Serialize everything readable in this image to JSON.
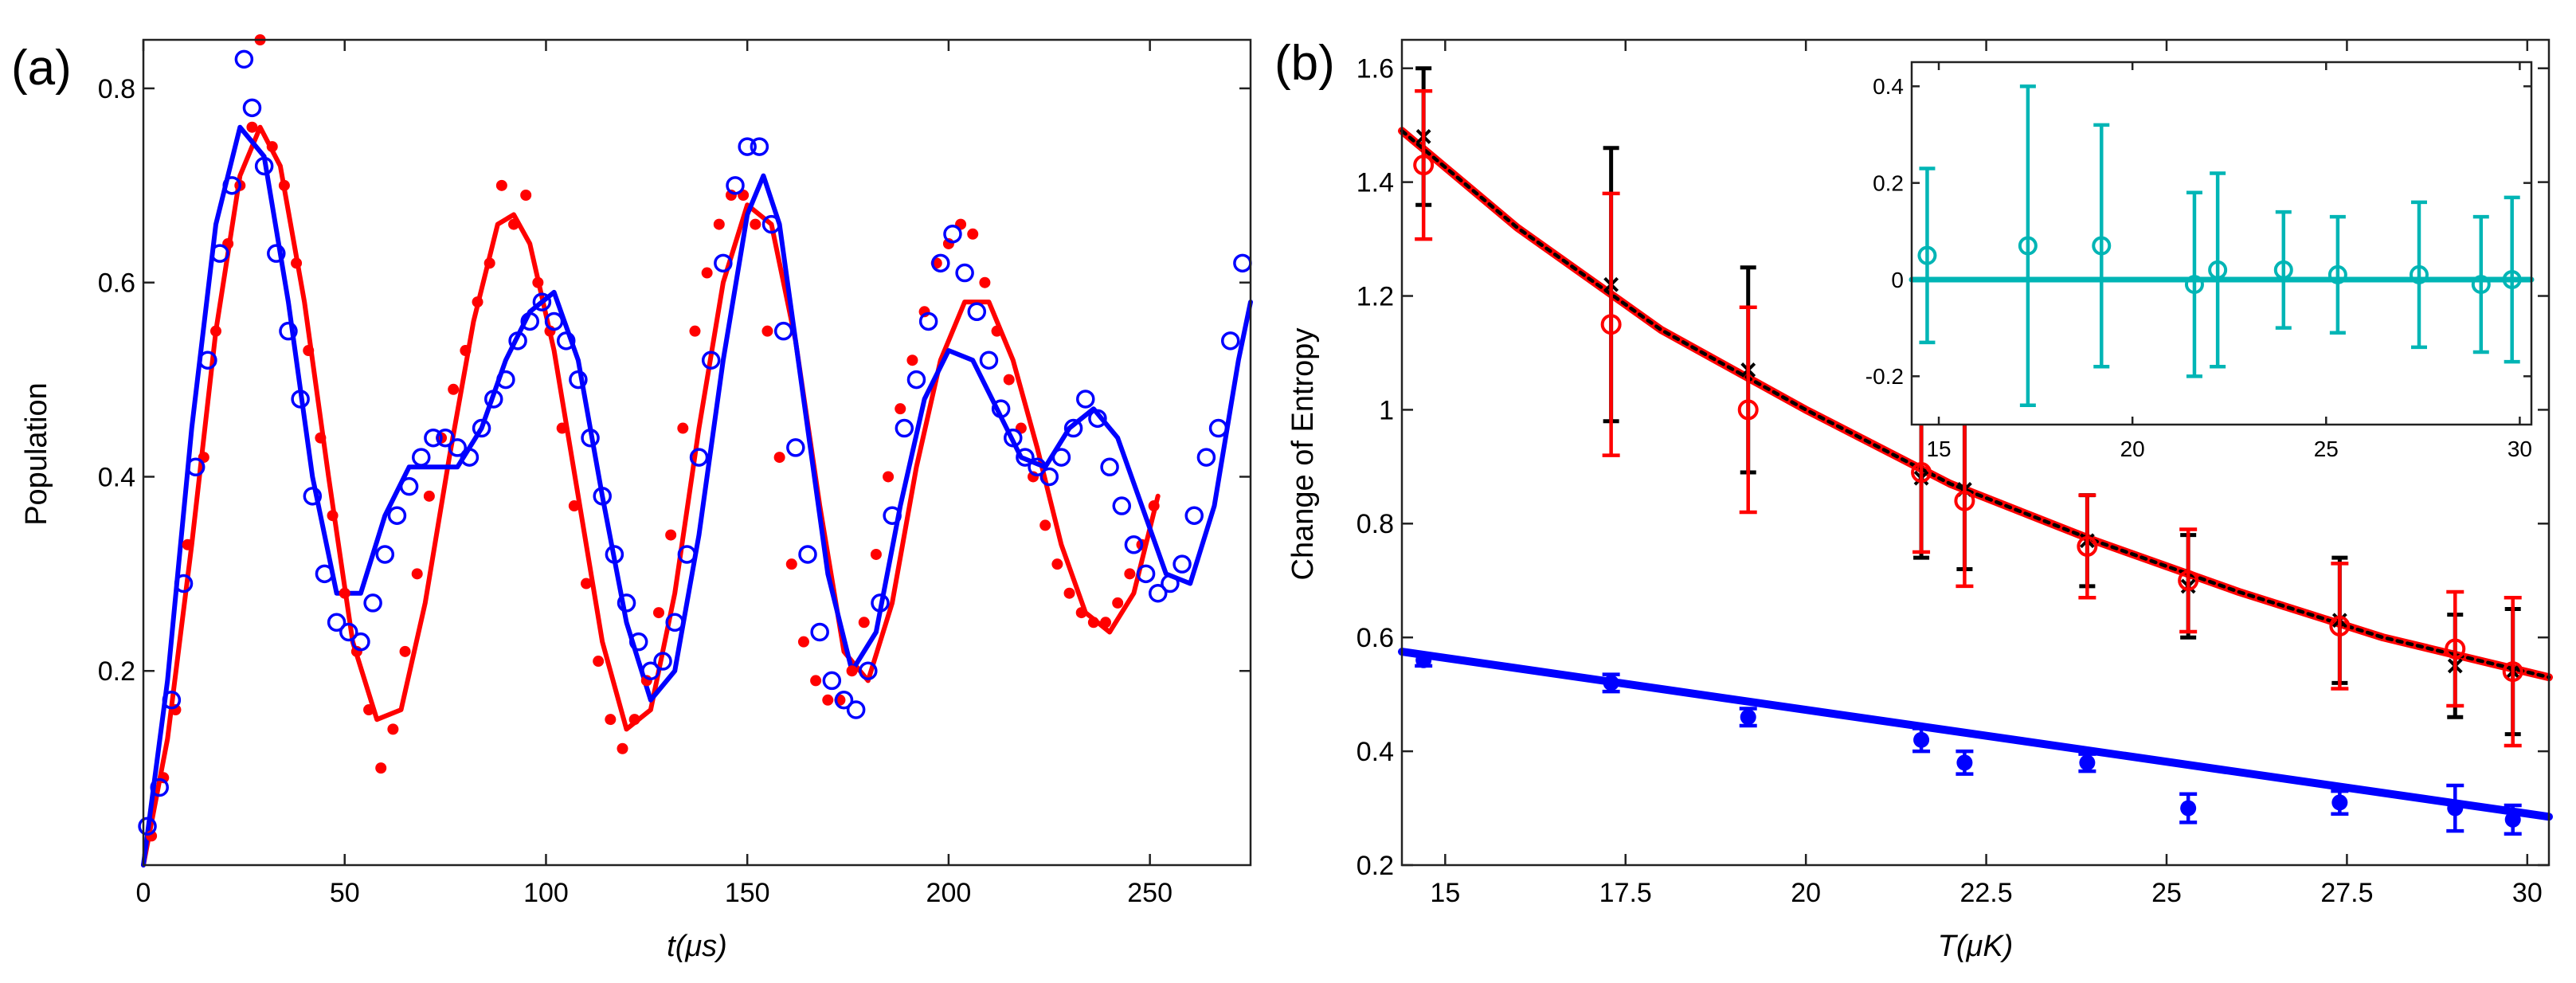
{
  "chart_data": [
    {
      "panel_label": "(a)",
      "type": "scatter",
      "xlabel": "t(μs)",
      "ylabel": "Population",
      "xlim": [
        0,
        275
      ],
      "ylim": [
        0,
        0.85
      ],
      "xticks": [
        0,
        50,
        100,
        150,
        200,
        250
      ],
      "yticks": [
        0.2,
        0.4,
        0.6,
        0.8
      ],
      "xtick_labels": [
        "0",
        "50",
        "100",
        "150",
        "200",
        "250"
      ],
      "ytick_labels": [
        "0.2",
        "0.4",
        "0.6",
        "0.8"
      ],
      "series": [
        {
          "name": "red-data",
          "marker": "filled-dot",
          "color": "#ff0000",
          "x": [
            2,
            5,
            8,
            11,
            15,
            18,
            21,
            24,
            27,
            29,
            32,
            35,
            38,
            41,
            44,
            47,
            50,
            53,
            56,
            59,
            62,
            65,
            68,
            71,
            74,
            77,
            80,
            83,
            86,
            89,
            92,
            95,
            98,
            101,
            104,
            107,
            110,
            113,
            116,
            119,
            122,
            125,
            128,
            131,
            134,
            137,
            140,
            143,
            146,
            149,
            152,
            155,
            158,
            161,
            164,
            167,
            170,
            173,
            176,
            179,
            182,
            185,
            188,
            191,
            194,
            197,
            200,
            203,
            206,
            209,
            212,
            215,
            218,
            221,
            224,
            227,
            230,
            233,
            236,
            239,
            242,
            245,
            248,
            251
          ],
          "y": [
            0.03,
            0.09,
            0.16,
            0.33,
            0.42,
            0.55,
            0.64,
            0.7,
            0.76,
            0.85,
            0.74,
            0.7,
            0.62,
            0.53,
            0.44,
            0.36,
            0.28,
            0.22,
            0.16,
            0.1,
            0.14,
            0.22,
            0.3,
            0.38,
            0.44,
            0.49,
            0.53,
            0.58,
            0.62,
            0.7,
            0.66,
            0.69,
            0.6,
            0.55,
            0.45,
            0.37,
            0.29,
            0.21,
            0.15,
            0.12,
            0.15,
            0.19,
            0.26,
            0.34,
            0.45,
            0.55,
            0.61,
            0.66,
            0.69,
            0.69,
            0.66,
            0.55,
            0.42,
            0.31,
            0.23,
            0.19,
            0.17,
            0.17,
            0.2,
            0.25,
            0.32,
            0.4,
            0.47,
            0.52,
            0.57,
            0.62,
            0.64,
            0.66,
            0.65,
            0.6,
            0.55,
            0.5,
            0.45,
            0.4,
            0.35,
            0.31,
            0.28,
            0.26,
            0.25,
            0.25,
            0.27,
            0.3,
            0.33,
            0.37
          ]
        },
        {
          "name": "blue-data",
          "marker": "open-circle",
          "color": "#0000ff",
          "x": [
            1,
            4,
            7,
            10,
            13,
            16,
            19,
            22,
            25,
            27,
            30,
            33,
            36,
            39,
            42,
            45,
            48,
            51,
            54,
            57,
            60,
            63,
            66,
            69,
            72,
            75,
            78,
            81,
            84,
            87,
            90,
            93,
            96,
            99,
            102,
            105,
            108,
            111,
            114,
            117,
            120,
            123,
            126,
            129,
            132,
            135,
            138,
            141,
            144,
            147,
            150,
            153,
            156,
            159,
            162,
            165,
            168,
            171,
            174,
            177,
            180,
            183,
            186,
            189,
            192,
            195,
            198,
            201,
            204,
            207,
            210,
            213,
            216,
            219,
            222,
            225,
            228,
            231,
            234,
            237,
            240,
            243,
            246,
            249,
            252,
            255,
            258,
            261,
            264,
            267,
            270,
            273
          ],
          "y": [
            0.04,
            0.08,
            0.17,
            0.29,
            0.41,
            0.52,
            0.63,
            0.7,
            0.83,
            0.78,
            0.72,
            0.63,
            0.55,
            0.48,
            0.38,
            0.3,
            0.25,
            0.24,
            0.23,
            0.27,
            0.32,
            0.36,
            0.39,
            0.42,
            0.44,
            0.44,
            0.43,
            0.42,
            0.45,
            0.48,
            0.5,
            0.54,
            0.56,
            0.58,
            0.56,
            0.54,
            0.5,
            0.44,
            0.38,
            0.32,
            0.27,
            0.23,
            0.2,
            0.21,
            0.25,
            0.32,
            0.42,
            0.52,
            0.62,
            0.7,
            0.74,
            0.74,
            0.66,
            0.55,
            0.43,
            0.32,
            0.24,
            0.19,
            0.17,
            0.16,
            0.2,
            0.27,
            0.36,
            0.45,
            0.5,
            0.56,
            0.62,
            0.65,
            0.61,
            0.57,
            0.52,
            0.47,
            0.44,
            0.42,
            0.41,
            0.4,
            0.42,
            0.45,
            0.48,
            0.46,
            0.41,
            0.37,
            0.33,
            0.3,
            0.28,
            0.29,
            0.31,
            0.36,
            0.42,
            0.45,
            0.54,
            0.62
          ]
        },
        {
          "name": "red-fit",
          "style": "line",
          "color": "#ff0000",
          "x": [
            0,
            6,
            12,
            18,
            24,
            29,
            34,
            40,
            46,
            52,
            58,
            64,
            70,
            76,
            82,
            88,
            92,
            96,
            102,
            108,
            114,
            120,
            126,
            132,
            138,
            144,
            150,
            156,
            162,
            168,
            174,
            180,
            186,
            192,
            198,
            204,
            210,
            216,
            222,
            228,
            234,
            240,
            246,
            252
          ],
          "y": [
            0.0,
            0.13,
            0.33,
            0.55,
            0.71,
            0.76,
            0.72,
            0.58,
            0.4,
            0.23,
            0.15,
            0.16,
            0.27,
            0.42,
            0.56,
            0.66,
            0.67,
            0.64,
            0.53,
            0.38,
            0.23,
            0.14,
            0.16,
            0.28,
            0.45,
            0.6,
            0.68,
            0.66,
            0.54,
            0.37,
            0.22,
            0.19,
            0.27,
            0.41,
            0.52,
            0.58,
            0.58,
            0.52,
            0.43,
            0.33,
            0.26,
            0.24,
            0.28,
            0.38
          ]
        },
        {
          "name": "blue-fit",
          "style": "line",
          "color": "#0000ff",
          "x": [
            0,
            6,
            12,
            18,
            24,
            30,
            36,
            42,
            48,
            54,
            60,
            66,
            72,
            78,
            84,
            90,
            96,
            102,
            108,
            114,
            120,
            126,
            132,
            138,
            144,
            150,
            154,
            158,
            164,
            170,
            176,
            182,
            188,
            194,
            200,
            206,
            212,
            218,
            224,
            230,
            236,
            242,
            248,
            254,
            260,
            266,
            272,
            275
          ],
          "y": [
            0.0,
            0.19,
            0.45,
            0.66,
            0.76,
            0.73,
            0.58,
            0.4,
            0.28,
            0.28,
            0.36,
            0.41,
            0.41,
            0.41,
            0.45,
            0.52,
            0.57,
            0.59,
            0.52,
            0.38,
            0.25,
            0.17,
            0.2,
            0.34,
            0.52,
            0.67,
            0.71,
            0.66,
            0.48,
            0.3,
            0.2,
            0.24,
            0.37,
            0.48,
            0.53,
            0.52,
            0.47,
            0.42,
            0.41,
            0.45,
            0.47,
            0.44,
            0.37,
            0.3,
            0.29,
            0.37,
            0.52,
            0.58
          ]
        }
      ]
    },
    {
      "panel_label": "(b)",
      "type": "scatter",
      "xlabel": "T(μK)",
      "ylabel": "Change of Entropy",
      "xlim": [
        14.4,
        30.3
      ],
      "ylim": [
        0.2,
        1.65
      ],
      "xticks": [
        15,
        17.5,
        20,
        22.5,
        25,
        27.5,
        30
      ],
      "yticks": [
        0.2,
        0.4,
        0.6,
        0.8,
        1,
        1.2,
        1.4,
        1.6
      ],
      "xtick_labels": [
        "15",
        "17.5",
        "20",
        "22.5",
        "25",
        "27.5",
        "30"
      ],
      "ytick_labels": [
        "0.2",
        "0.4",
        "0.6",
        "0.8",
        "1",
        "1.2",
        "1.4",
        "1.6"
      ],
      "series": [
        {
          "name": "black-x-points",
          "marker": "x-errorbar",
          "color": "#000000",
          "x": [
            14.7,
            17.3,
            19.2,
            21.6,
            22.2,
            23.9,
            25.3,
            27.4,
            29.0,
            29.8
          ],
          "y": [
            1.48,
            1.22,
            1.07,
            0.88,
            0.86,
            0.77,
            0.69,
            0.63,
            0.55,
            0.54
          ],
          "err": [
            0.12,
            0.24,
            0.18,
            0.14,
            0.14,
            0.08,
            0.09,
            0.11,
            0.09,
            0.11
          ]
        },
        {
          "name": "red-circle-points",
          "marker": "open-circle-errorbar",
          "color": "#ff0000",
          "x": [
            14.7,
            17.3,
            19.2,
            21.6,
            22.2,
            23.9,
            25.3,
            27.4,
            29.0,
            29.8
          ],
          "y": [
            1.43,
            1.15,
            1.0,
            0.89,
            0.84,
            0.76,
            0.7,
            0.62,
            0.58,
            0.54
          ],
          "err": [
            0.13,
            0.23,
            0.18,
            0.14,
            0.15,
            0.09,
            0.09,
            0.11,
            0.1,
            0.13
          ]
        },
        {
          "name": "blue-dot-points",
          "marker": "filled-dot-errorbar",
          "color": "#0000ff",
          "x": [
            14.7,
            17.3,
            19.2,
            21.6,
            22.2,
            23.9,
            25.3,
            27.4,
            29.0,
            29.8
          ],
          "y": [
            0.56,
            0.52,
            0.46,
            0.42,
            0.38,
            0.38,
            0.3,
            0.31,
            0.3,
            0.28
          ],
          "err": [
            0.01,
            0.015,
            0.015,
            0.02,
            0.02,
            0.015,
            0.025,
            0.02,
            0.04,
            0.025
          ]
        },
        {
          "name": "red-black-fit",
          "style": "line",
          "color": "#ff0000",
          "x": [
            14.4,
            16,
            18,
            20,
            22,
            24,
            26,
            28,
            30.3
          ],
          "y": [
            1.49,
            1.32,
            1.14,
            1.0,
            0.87,
            0.77,
            0.68,
            0.6,
            0.53
          ]
        },
        {
          "name": "blue-fit",
          "style": "line",
          "color": "#0000ff",
          "x": [
            14.4,
            30.3
          ],
          "y": [
            0.575,
            0.285
          ]
        }
      ],
      "inset": {
        "type": "scatter",
        "xlim": [
          14.3,
          30.3
        ],
        "ylim": [
          -0.3,
          0.45
        ],
        "xticks": [
          15,
          20,
          25,
          30
        ],
        "yticks": [
          -0.2,
          0,
          0.2,
          0.4
        ],
        "xtick_labels": [
          "15",
          "20",
          "25",
          "30"
        ],
        "ytick_labels": [
          "-0.2",
          "0",
          "0.2",
          "0.4"
        ],
        "series": [
          {
            "name": "teal-points",
            "marker": "open-circle-errorbar",
            "color": "#00b5b5",
            "x": [
              14.7,
              17.3,
              19.2,
              21.6,
              22.2,
              23.9,
              25.3,
              27.4,
              29.0,
              29.8
            ],
            "y": [
              0.05,
              0.07,
              0.07,
              -0.01,
              0.02,
              0.02,
              0.01,
              0.01,
              -0.01,
              0.0
            ],
            "err": [
              0.18,
              0.33,
              0.25,
              0.19,
              0.2,
              0.12,
              0.12,
              0.15,
              0.14,
              0.17
            ]
          },
          {
            "name": "teal-zero-line",
            "style": "line",
            "color": "#00b5b5",
            "x": [
              14.3,
              30.3
            ],
            "y": [
              0,
              0
            ]
          }
        ]
      }
    }
  ]
}
